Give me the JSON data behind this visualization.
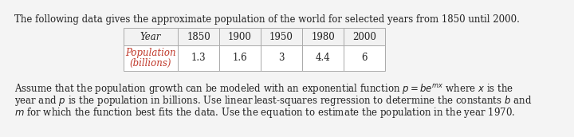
{
  "title_text": "The following data gives the approximate population of the world for selected years from 1850 until 2000.",
  "table_header_label": "Year",
  "table_years": [
    "1850",
    "1900",
    "1950",
    "1980",
    "2000"
  ],
  "table_pop_label1": "Population",
  "table_pop_label2": "(billions)",
  "table_pop_values": [
    "1.3",
    "1.6",
    "3",
    "4.4",
    "6"
  ],
  "header_bg": "#f2f2f2",
  "row_bg": "#ffffff",
  "label_color": "#c0392b",
  "text_color": "#222222",
  "bg_color": "#f4f4f4",
  "border_color": "#aaaaaa",
  "font_size": 8.5,
  "table_font_size": 8.5,
  "line1": "Assume that the population growth can be modeled with an exponential function ",
  "line1_formula": "$p = be^{mx}$",
  "line1_end": " where $x$ is the",
  "line2": "year and $p$ is the population in billions. Use linear least-squares regression to determine the constants $b$ and",
  "line3": "$m$ for which the function best fits the data. Use the equation to estimate the population in the year 1970."
}
